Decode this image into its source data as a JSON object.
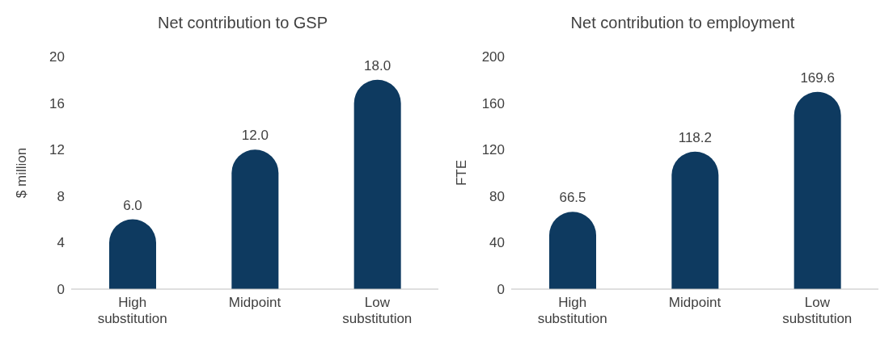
{
  "chart_data": [
    {
      "type": "bar",
      "title": "Net contribution to GSP",
      "ylabel": "$ million",
      "categories": [
        "High substitution",
        "Midpoint",
        "Low substitution"
      ],
      "values": [
        6,
        12,
        18
      ],
      "value_labels": [
        "6.0",
        "12.0",
        "18.0"
      ],
      "color": "#0e3a60",
      "ylim": [
        0,
        20
      ],
      "yticks": [
        0,
        4,
        8,
        12,
        16,
        20
      ],
      "grid": false,
      "legend": false
    },
    {
      "type": "bar",
      "title": "Net contribution to employment",
      "ylabel": "FTE",
      "categories": [
        "High substitution",
        "Midpoint",
        "Low substitution"
      ],
      "values": [
        66.5,
        118.2,
        169.6
      ],
      "value_labels": [
        "66.5",
        "118.2",
        "169.6"
      ],
      "color": "#0e3a60",
      "ylim": [
        0,
        200
      ],
      "yticks": [
        0,
        40,
        80,
        120,
        160,
        200
      ],
      "grid": false,
      "legend": false
    }
  ]
}
